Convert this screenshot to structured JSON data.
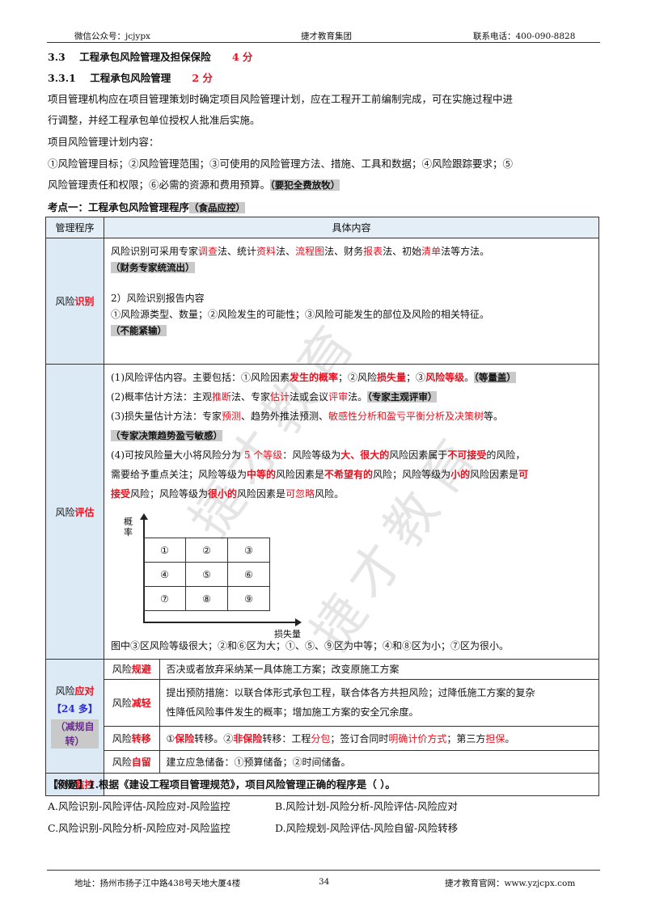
{
  "header": {
    "left": "微信公众号：jcjypx",
    "center": "捷才教育集团",
    "right": "联系电话：400-090-8828"
  },
  "section": {
    "num": "3.3",
    "title": "工程承包风险管理及担保保险",
    "score": "4 分"
  },
  "subsection": {
    "num": "3.3.1",
    "title": "工程承包风险管理",
    "score": "2 分"
  },
  "intro": {
    "line1": "项目管理机构应在项目管理策划时确定项目风险管理计划，应在工程开工前编制完成，可在实施过程中进",
    "line2": "行调整，并经工程承包单位授权人批准后实施。",
    "line3": "项目风险管理计划内容：",
    "line4": "①风险管理目标；②风险管理范围；③可使用的风险管理方法、措施、工具和数据；④风险跟踪要求；⑤",
    "line5": "风险管理责任和权限；⑥必需的资源和费用预算。",
    "line5_tag": "（要犯全费放牧）"
  },
  "kaodian": {
    "title": "考点一：工程承包风险管理程序",
    "tag": "（食品应控）"
  },
  "table": {
    "col1": "管理程序",
    "col2": "具体内容",
    "identify": {
      "label_a": "风险",
      "label_b": "识别",
      "l1a": "风险识别可采用专家",
      "l1b": "调查",
      "l1c": "法、统计",
      "l1d": "资料",
      "l1e": "法、",
      "l1f": "流程图",
      "l1g": "法、财务",
      "l1h": "报表",
      "l1i": "法、初始",
      "l1j": "清单",
      "l1k": "法等方法。",
      "tag1": "（财务专家统流出）",
      "l2": "2）风险识别报告内容",
      "l3": "①风险源类型、数量；②风险发生的可能性；③风险可能发生的部位及风险的相关特征。",
      "tag2": "（不能紧输）"
    },
    "evaluate": {
      "label_a": "风险",
      "label_b": "评估",
      "p1a": "(1)风险评估内容。主要包括：①风险因素",
      "p1b": "发生的概率",
      "p1c": "；②风险",
      "p1d": "损失量",
      "p1e": "；③",
      "p1f": "风险等级",
      "p1g": "。",
      "p1tag": "（等量盖）",
      "p2a": "(2)概率估计方法：主观",
      "p2b": "推断",
      "p2c": "法、专家",
      "p2d": "估计",
      "p2e": "法或会议",
      "p2f": "评审",
      "p2g": "法。",
      "p2tag": "（专家主观评审）",
      "p3a": "(3)损失量估计方法：专家",
      "p3b": "预测",
      "p3c": "、趋势外推法预测、",
      "p3d": "敏感性分析和盈亏平衡分析及决策树",
      "p3e": "等。",
      "p3tag": "（专家决策趋势盈亏敏感）",
      "p4a": "(4)可按风险量大小将风险分为",
      "p4b": " 5 个等级",
      "p4c": "：风险等级为",
      "p4d": "大、很大的",
      "p4e": "风险因素属于",
      "p4f": "不可接受",
      "p4g": "的风险，",
      "p5a": "需要给予重点关注；风险等级为",
      "p5b": "中等的",
      "p5c": "风险因素是",
      "p5d": "不希望有的",
      "p5e": "风险；风险等级为",
      "p5f": "小的",
      "p5g": "风险因素是",
      "p5h": "可",
      "p6a": "接受",
      "p6b": "风险；风险等级为",
      "p6c": "很小的",
      "p6d": "风险因素是",
      "p6e": "可忽略",
      "p6f": "风险。",
      "chart_ylabel": "概率",
      "chart_xlabel": "损失量",
      "grid": [
        [
          "①",
          "②",
          "③"
        ],
        [
          "④",
          "⑤",
          "⑥"
        ],
        [
          "⑦",
          "⑧",
          "⑨"
        ]
      ],
      "caption": "图中③区风险等级很大；②和⑥区为大；①、⑤、⑨区为中等；④和⑧区为小；⑦区为很小。"
    },
    "respond": {
      "label_a": "风险",
      "label_b": "应对",
      "label_c": "【24 多】",
      "label_tag": "（减规自转）",
      "rows": [
        {
          "a": "风险",
          "b": "规避",
          "content": "否决或者放弃采纳某一具体施工方案；改变原施工方案"
        },
        {
          "a": "风险",
          "b": "减轻",
          "content1": "提出预防措施：以联合体形式承包工程，联合体各方共担风险；过降低施工方案的复杂",
          "content2": "性降低风险事件发生的概率；增加施工方案的安全冗余度。"
        },
        {
          "a": "风险",
          "b": "转移",
          "c1": "①",
          "c2": "保险",
          "c3": "转移。②",
          "c4": "非保险",
          "c5": "转移：工程",
          "c6": "分包",
          "c7": "；签订合同时",
          "c8": "明确计价方式",
          "c9": "；第三方",
          "c10": "担保",
          "c11": "。"
        },
        {
          "a": "风险",
          "b": "自留",
          "content": "建立应急储备：①预算储备；②时间储备。"
        }
      ]
    },
    "monitor": {
      "label_a": "风险",
      "label_b": "监控"
    }
  },
  "example": {
    "q": "【例题】1.根据《建设工程项目管理规范》，项目风险管理正确的程序是（    ）。",
    "a": "A.风险识别-风险评估-风险应对-风险监控",
    "b": "B.风险计划-风险分析-风险评估-风险应对",
    "c": "C.风险识别-风险分析-风险应对-风险监控",
    "d": "D.风险规划-风险评估-风险自留-风险转移"
  },
  "footer": {
    "left": "地址：扬州市扬子江中路438号天地大厦4楼",
    "page": "34",
    "right": "捷才教育官网：www.yzjcpx.com"
  },
  "watermark": {
    "text1": "捷才教育",
    "text2": "捷才教育"
  }
}
